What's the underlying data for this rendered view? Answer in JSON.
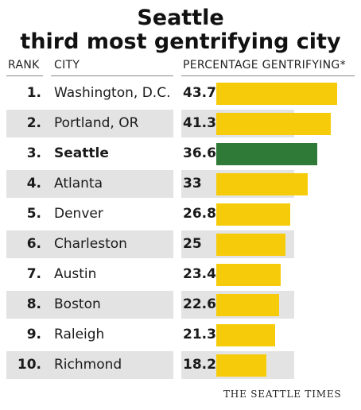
{
  "header": {
    "title_line1": "Seattle",
    "title_line2": "third most gentrifying city"
  },
  "columns": {
    "rank": "RANK",
    "city": "CITY",
    "percent": "PERCENTAGE GENTRIFYING*"
  },
  "credit": "THE SEATTLE TIMES",
  "colors": {
    "bar": "#f6cc0a",
    "highlight": "#2f7a37",
    "band": "#e3e3e3"
  },
  "chart_data": {
    "type": "bar",
    "orientation": "horizontal",
    "title": "Seattle third most gentrifying city",
    "ylabel": "PERCENTAGE GENTRIFYING*",
    "xlim": [
      0,
      46
    ],
    "highlight": "Seattle",
    "rows": [
      {
        "rank": "1.",
        "city": "Washington, D.C.",
        "value": 43.7,
        "label": "43.7"
      },
      {
        "rank": "2.",
        "city": "Portland, OR",
        "value": 41.3,
        "label": "41.3"
      },
      {
        "rank": "3.",
        "city": "Seattle",
        "value": 36.6,
        "label": "36.6"
      },
      {
        "rank": "4.",
        "city": "Atlanta",
        "value": 33,
        "label": "33"
      },
      {
        "rank": "5.",
        "city": "Denver",
        "value": 26.8,
        "label": "26.8"
      },
      {
        "rank": "6.",
        "city": "Charleston",
        "value": 25,
        "label": "25"
      },
      {
        "rank": "7.",
        "city": "Austin",
        "value": 23.4,
        "label": "23.4"
      },
      {
        "rank": "8.",
        "city": "Boston",
        "value": 22.6,
        "label": "22.6"
      },
      {
        "rank": "9.",
        "city": "Raleigh",
        "value": 21.3,
        "label": "21.3"
      },
      {
        "rank": "10.",
        "city": "Richmond",
        "value": 18.2,
        "label": "18.2"
      }
    ]
  }
}
